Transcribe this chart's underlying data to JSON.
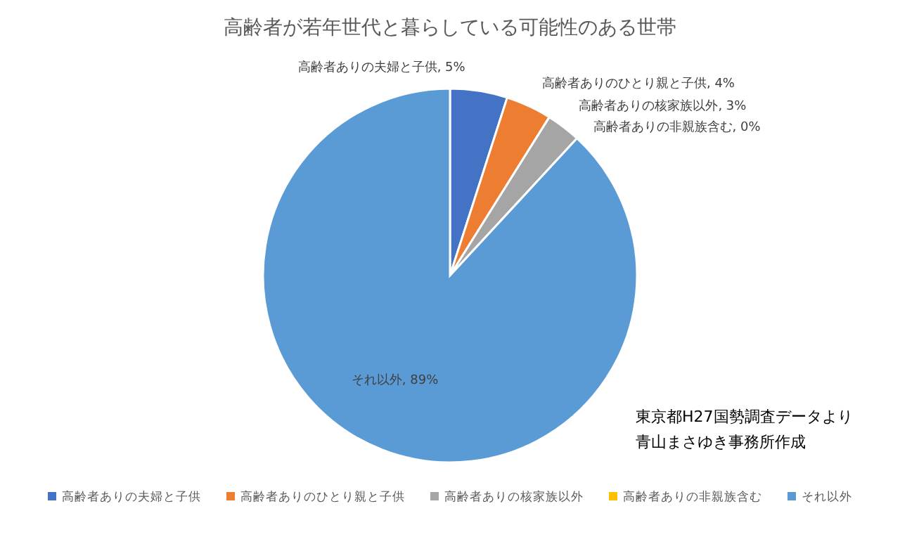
{
  "chart_data": {
    "type": "pie",
    "title": "高齢者が若年世代と暮らしている可能性のある世帯",
    "categories": [
      "高齢者ありの夫婦と子供",
      "高齢者ありのひとり親と子供",
      "高齢者ありの核家族以外",
      "高齢者ありの非親族含む",
      "それ以外"
    ],
    "values": [
      5,
      4,
      3,
      0,
      89
    ],
    "colors": [
      "#4472c4",
      "#ed7d31",
      "#a5a5a5",
      "#ffc000",
      "#5b9bd5"
    ],
    "value_labels": [
      ", 5%",
      ", 4%",
      ", 3%",
      ", 0%",
      ", 89%"
    ],
    "legend": "bottom",
    "annotations": [
      "東京都H27国勢調査データより",
      "青山まさゆき事務所作成"
    ]
  }
}
